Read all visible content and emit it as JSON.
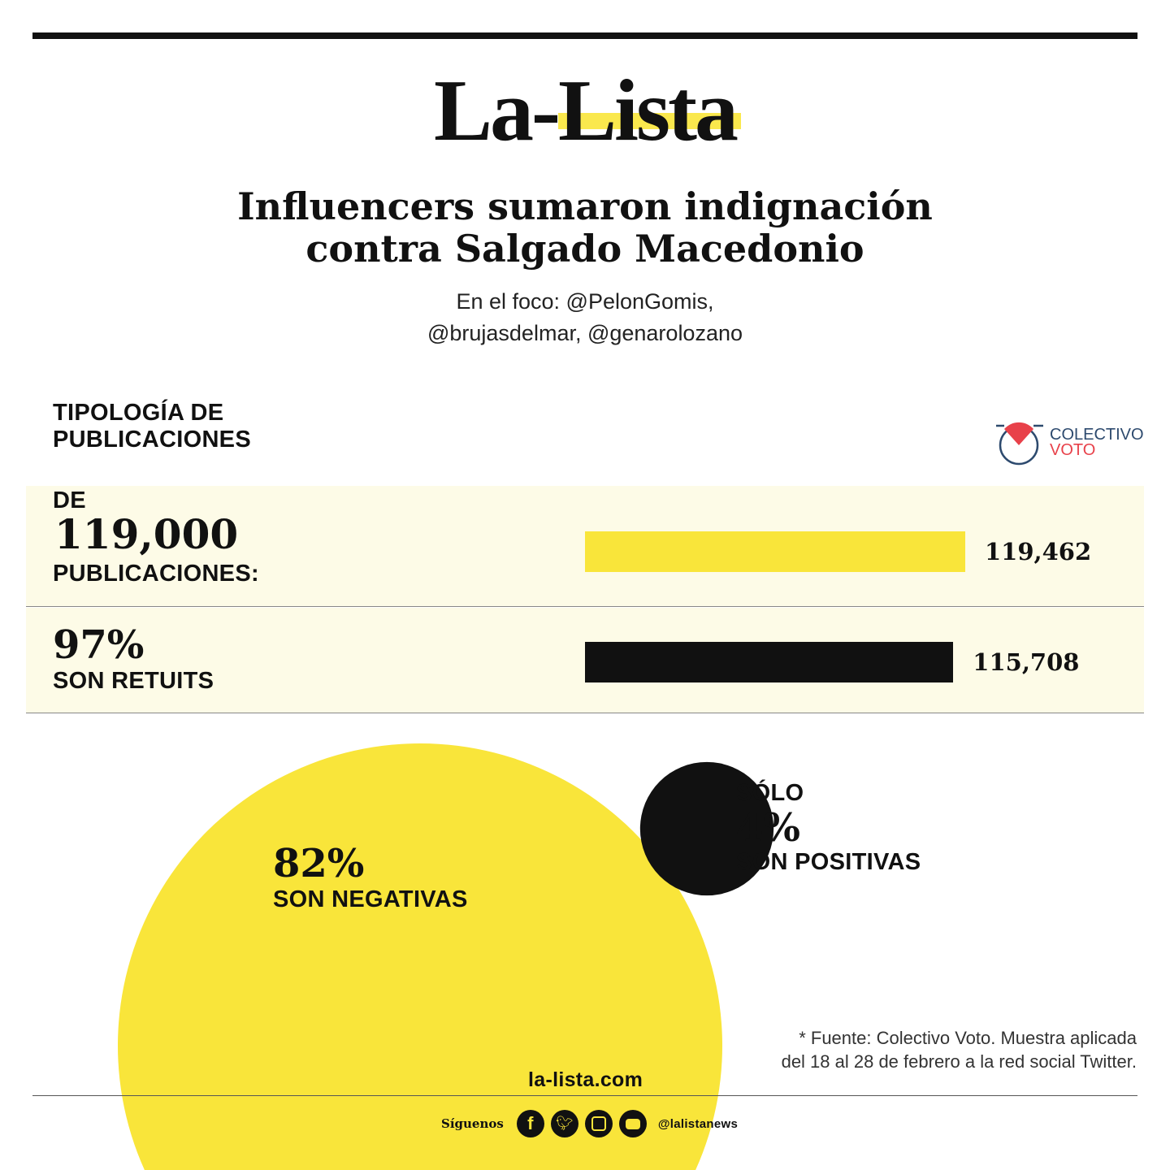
{
  "brand": {
    "logo_prefix": "La-",
    "logo_highlight": "Lista",
    "website": "la-lista.com",
    "follow_label": "Síguenos",
    "handle": "@lalistanews",
    "social_icons": [
      "facebook-icon",
      "twitter-icon",
      "instagram-icon",
      "youtube-icon"
    ]
  },
  "header": {
    "title_line1": "Influencers sumaron indignación",
    "title_line2": "contra Salgado Macedonio",
    "subtitle_line1": "En el foco: @PelonGomis,",
    "subtitle_line2": "@brujasdelmar, @genarolozano"
  },
  "section": {
    "line1": "TIPOLOGÍA DE",
    "line2": "PUBLICACIONES"
  },
  "partner": {
    "line1": "COLECTIVO",
    "line2": "VOTO"
  },
  "rows": [
    {
      "pre": "DE",
      "big": "119,000",
      "post": "PUBLICACIONES:"
    },
    {
      "big": "97%",
      "post": "SON RETUITS"
    }
  ],
  "circles": {
    "negative": {
      "big": "82%",
      "label": "SON NEGATIVAS"
    },
    "positive": {
      "pre": "SÓLO",
      "big": "4%",
      "label": "SON POSITIVAS"
    }
  },
  "footnote": {
    "line1": "* Fuente: Colectivo Voto. Muestra aplicada",
    "line2": "del 18 al 28 de febrero a la red social Twitter."
  },
  "colors": {
    "yellow": "#f9e53a",
    "black": "#111111",
    "row_bg": "#fdfbe7",
    "voto_red": "#e8414a",
    "voto_blue": "#2d4a6e"
  },
  "chart_data": [
    {
      "type": "bar",
      "orientation": "horizontal",
      "values": [
        119462,
        115708
      ],
      "labels": [
        "119,462",
        "115,708"
      ],
      "colors": [
        "#f9e53a",
        "#111111"
      ]
    },
    {
      "type": "area-circles",
      "values": [
        82,
        4
      ],
      "unit": "%",
      "colors": [
        "#f9e53a",
        "#111111"
      ]
    }
  ]
}
